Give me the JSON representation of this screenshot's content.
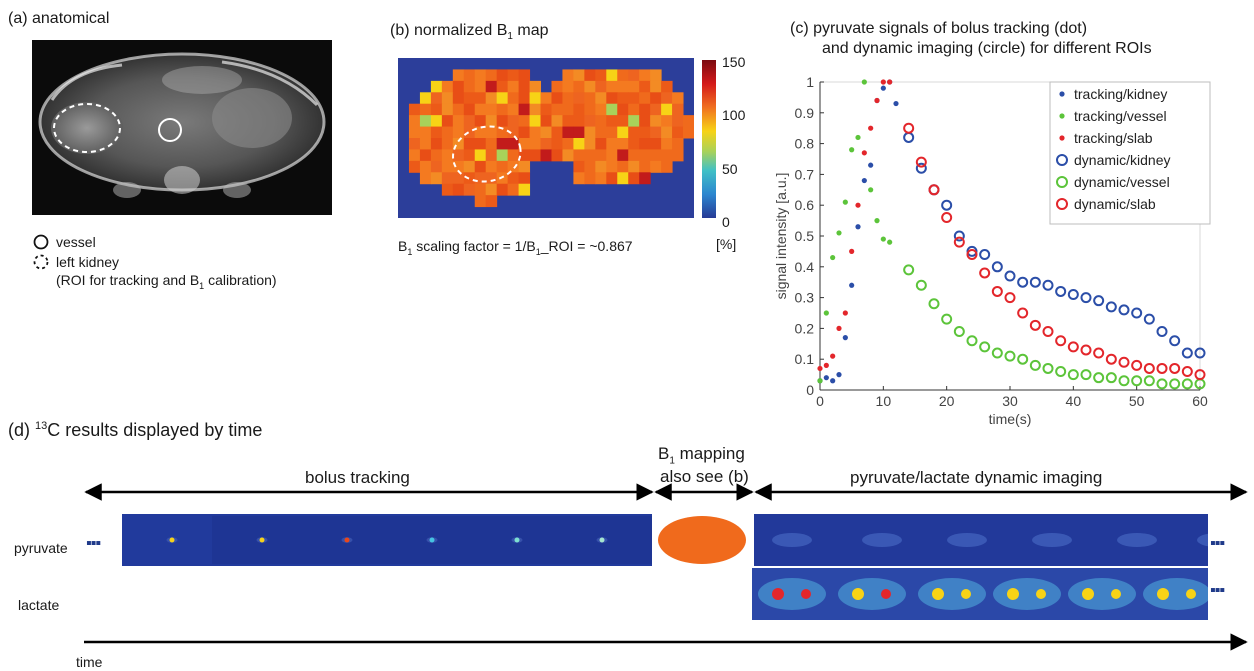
{
  "panels": {
    "a": {
      "title": "(a)  anatomical",
      "legend": [
        {
          "icon": "solid-circle-icon",
          "text": "vessel"
        },
        {
          "icon": "dashed-circle-icon",
          "text": "left kidney"
        }
      ],
      "legend_note_prefix": "(ROI for tracking and B",
      "legend_note_sub": "1",
      "legend_note_suffix": " calibration)"
    },
    "b": {
      "title_prefix": "(b)   normalized B",
      "title_sub": "1",
      "title_suffix": " map",
      "colorbar_ticks": [
        "150",
        "100",
        "50",
        "0"
      ],
      "colorbar_unit": "[%]",
      "caption_prefix": "B",
      "caption_sub1": "1",
      "caption_mid": " scaling factor = 1/B",
      "caption_sub2": "1",
      "caption_suffix": "_ROI = ~0.867"
    },
    "c": {
      "title_line1": "(c)   pyruvate signals of bolus tracking (dot)",
      "title_line2": "and dynamic imaging (circle) for different ROIs"
    },
    "d": {
      "title_prefix": "(d) ",
      "title_sup": "13",
      "title_suffix": "C results displayed by time",
      "segments": [
        "bolus tracking",
        "B",
        "also see (b)",
        "pyruvate/lactate dynamic imaging"
      ],
      "b1_sub": "1",
      "b1_suffix": " mapping",
      "rows": [
        "pyruvate",
        "lactate"
      ],
      "ellipsis": "▪▪▪",
      "time_label": "time"
    }
  },
  "colors": {
    "blue": "#2b4ea8",
    "green": "#5cc43a",
    "red": "#e3262b",
    "map_bg": "#2c3e9a",
    "map_orange": "#f06a1c"
  },
  "chart_data": {
    "type": "scatter",
    "xlabel": "time(s)",
    "ylabel": "signal intensity [a.u.]",
    "xlim": [
      0,
      60
    ],
    "ylim": [
      0,
      1
    ],
    "xticks": [
      "0",
      "10",
      "20",
      "30",
      "40",
      "50",
      "60"
    ],
    "yticks": [
      "0",
      "0.1",
      "0.2",
      "0.3",
      "0.4",
      "0.5",
      "0.6",
      "0.7",
      "0.8",
      "0.9",
      "1"
    ],
    "legend_position": "top-right",
    "series": [
      {
        "name": "tracking/kidney",
        "marker": "dot",
        "color": "#2b4ea8",
        "x": [
          0,
          1,
          2,
          3,
          4,
          5,
          6,
          7,
          8,
          9,
          10,
          11,
          12
        ],
        "y": [
          0.03,
          0.04,
          0.03,
          0.05,
          0.17,
          0.34,
          0.53,
          0.68,
          0.73,
          0.94,
          0.98,
          1.0,
          0.93
        ]
      },
      {
        "name": "tracking/vessel",
        "marker": "dot",
        "color": "#5cc43a",
        "x": [
          0,
          1,
          2,
          3,
          4,
          5,
          6,
          7,
          8,
          9,
          10,
          11
        ],
        "y": [
          0.03,
          0.25,
          0.43,
          0.51,
          0.61,
          0.78,
          0.82,
          1.0,
          0.65,
          0.55,
          0.49,
          0.48
        ]
      },
      {
        "name": "tracking/slab",
        "marker": "dot",
        "color": "#e3262b",
        "x": [
          0,
          1,
          2,
          3,
          4,
          5,
          6,
          7,
          8,
          9,
          10,
          11
        ],
        "y": [
          0.07,
          0.08,
          0.11,
          0.2,
          0.25,
          0.45,
          0.6,
          0.77,
          0.85,
          0.94,
          1.0,
          1.0
        ]
      },
      {
        "name": "dynamic/kidney",
        "marker": "circle",
        "color": "#2b4ea8",
        "x": [
          14,
          16,
          18,
          20,
          22,
          24,
          26,
          28,
          30,
          32,
          34,
          36,
          38,
          40,
          42,
          44,
          46,
          48,
          50,
          52,
          54,
          56,
          58,
          60
        ],
        "y": [
          0.82,
          0.72,
          0.65,
          0.6,
          0.5,
          0.45,
          0.44,
          0.4,
          0.37,
          0.35,
          0.35,
          0.34,
          0.32,
          0.31,
          0.3,
          0.29,
          0.27,
          0.26,
          0.25,
          0.23,
          0.19,
          0.16,
          0.12,
          0.12
        ]
      },
      {
        "name": "dynamic/vessel",
        "marker": "circle",
        "color": "#5cc43a",
        "x": [
          14,
          16,
          18,
          20,
          22,
          24,
          26,
          28,
          30,
          32,
          34,
          36,
          38,
          40,
          42,
          44,
          46,
          48,
          50,
          52,
          54,
          56,
          58,
          60
        ],
        "y": [
          0.39,
          0.34,
          0.28,
          0.23,
          0.19,
          0.16,
          0.14,
          0.12,
          0.11,
          0.1,
          0.08,
          0.07,
          0.06,
          0.05,
          0.05,
          0.04,
          0.04,
          0.03,
          0.03,
          0.03,
          0.02,
          0.02,
          0.02,
          0.02
        ]
      },
      {
        "name": "dynamic/slab",
        "marker": "circle",
        "color": "#e3262b",
        "x": [
          14,
          16,
          18,
          20,
          22,
          24,
          26,
          28,
          30,
          32,
          34,
          36,
          38,
          40,
          42,
          44,
          46,
          48,
          50,
          52,
          54,
          56,
          58,
          60
        ],
        "y": [
          0.85,
          0.74,
          0.65,
          0.56,
          0.48,
          0.44,
          0.38,
          0.32,
          0.3,
          0.25,
          0.21,
          0.19,
          0.16,
          0.14,
          0.13,
          0.12,
          0.1,
          0.09,
          0.08,
          0.07,
          0.07,
          0.07,
          0.06,
          0.05
        ]
      }
    ]
  }
}
